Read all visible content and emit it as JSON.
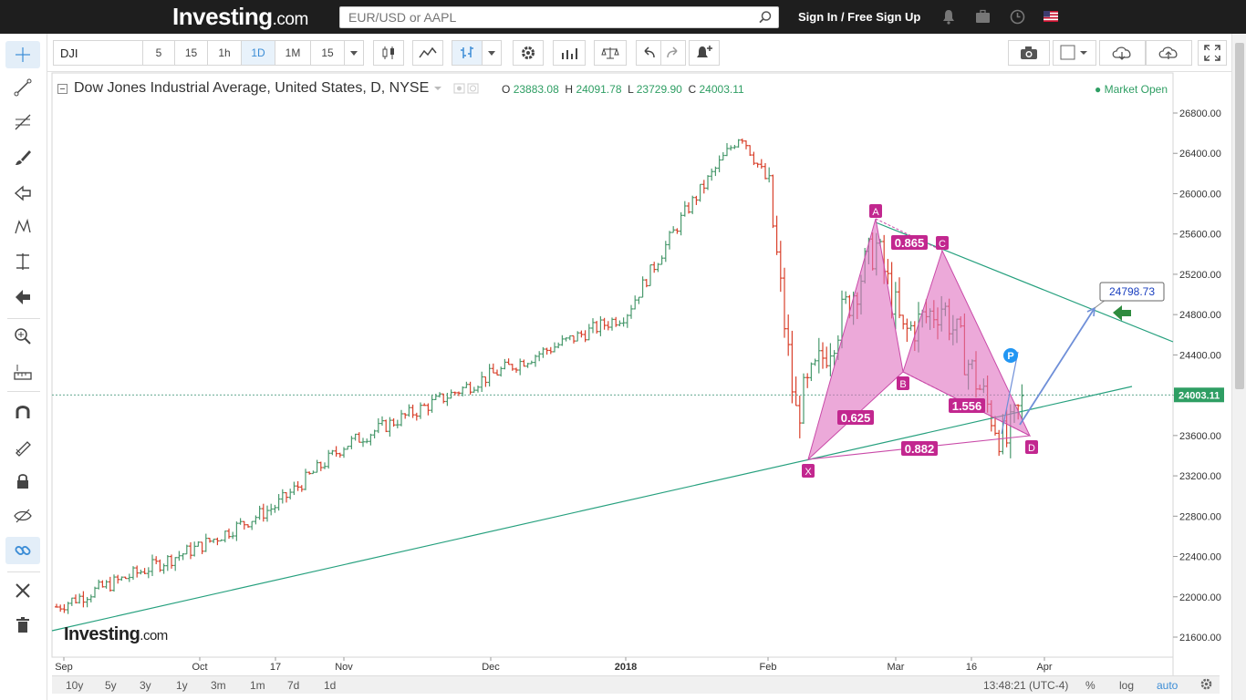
{
  "site": {
    "logo_main": "Investing",
    "logo_suffix": ".com",
    "search_placeholder": "EUR/USD or AAPL",
    "signin_label": "Sign In / Free Sign Up"
  },
  "toolbar": {
    "symbol": "DJI",
    "intervals": [
      "5",
      "15",
      "1h",
      "1D",
      "1M",
      "15"
    ],
    "active_interval": "1D"
  },
  "legend": {
    "title": "Dow Jones Industrial Average, United States, D, NYSE",
    "o_label": "O",
    "o_value": "23883.08",
    "h_label": "H",
    "h_value": "24091.78",
    "l_label": "L",
    "l_value": "23729.90",
    "c_label": "C",
    "c_value": "24003.11",
    "market_status": "Market Open",
    "watermark_main": "Investing",
    "watermark_suffix": ".com"
  },
  "bottom": {
    "ranges": [
      "10y",
      "5y",
      "3y",
      "1y",
      "3m",
      "1m",
      "7d",
      "1d"
    ],
    "time": "13:48:21 (UTC-4)",
    "percent_label": "%",
    "log_label": "log",
    "auto_label": "auto"
  },
  "colors": {
    "up": "#4a9a6e",
    "down": "#d9412c",
    "pattern_fill": "#e070c0",
    "pattern_label": "#c2278f",
    "trend_line": "#26a07e",
    "projection": "#6f8fd8"
  },
  "chart_data": {
    "type": "ohlc",
    "y_ticks": [
      21600,
      22000,
      22400,
      22800,
      23200,
      23600,
      24000,
      24400,
      24800,
      25200,
      25600,
      26000,
      26400,
      26800
    ],
    "y_tick_labels": [
      "21600.00",
      "22000.00",
      "22400.00",
      "22800.00",
      "23200.00",
      "23600.00",
      "24000.00",
      "24400.00",
      "24800.00",
      "25200.00",
      "25600.00",
      "26000.00",
      "26400.00",
      "26800.00"
    ],
    "x_labels": [
      "Sep",
      "Oct",
      "17",
      "Nov",
      "Dec",
      "2018",
      "Feb",
      "Mar",
      "16",
      "Apr"
    ],
    "last_price": "24003.11",
    "target_price": "24798.73",
    "close_path": [
      [
        "Sep",
        21900
      ],
      [
        "Oct",
        22500
      ],
      [
        "17",
        22900
      ],
      [
        "Nov",
        23500
      ],
      [
        "Dec",
        24200
      ],
      [
        "2018",
        24800
      ],
      [
        "Jan-mid",
        25800
      ],
      [
        "Jan-end",
        26600
      ],
      [
        "Feb",
        26100
      ],
      [
        "Feb-8",
        23800
      ],
      [
        "Feb-26",
        25500
      ],
      [
        "Mar",
        24600
      ],
      [
        "16",
        24900
      ],
      [
        "Mar-23",
        23500
      ],
      [
        "now",
        24003
      ]
    ],
    "harmonic_pattern": {
      "points": [
        {
          "label": "X",
          "value": 23350
        },
        {
          "label": "A",
          "value": 25700
        },
        {
          "label": "B",
          "value": 24250
        },
        {
          "label": "C",
          "value": 25450
        },
        {
          "label": "D",
          "value": 23600
        }
      ],
      "ratios": [
        "0.625",
        "0.865",
        "1.556",
        "0.882"
      ]
    }
  }
}
